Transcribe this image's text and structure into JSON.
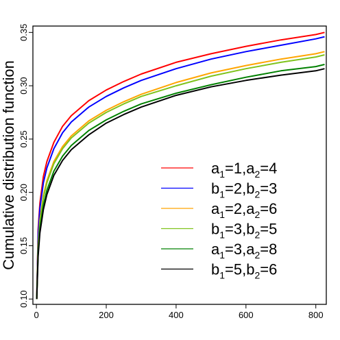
{
  "chart_data": {
    "type": "line",
    "title": "",
    "xlabel": "",
    "ylabel": "Cumulative distribution function",
    "xlim": [
      -10,
      830
    ],
    "ylim": [
      0.095,
      0.356
    ],
    "x_ticks": [
      0,
      200,
      400,
      600,
      800
    ],
    "y_ticks": [
      0.1,
      0.15,
      0.2,
      0.25,
      0.3,
      0.35
    ],
    "x_tick_labels": [
      "0",
      "200",
      "400",
      "600",
      "800"
    ],
    "y_tick_labels": [
      "0.10",
      "0.15",
      "0.20",
      "0.25",
      "0.30",
      "0.35"
    ],
    "grid": false,
    "legend_position": "right",
    "x": [
      1,
      5,
      10,
      20,
      30,
      50,
      75,
      100,
      150,
      200,
      250,
      300,
      400,
      500,
      600,
      700,
      800,
      825
    ],
    "series": [
      {
        "name": "a1=1,a2=4",
        "label_parts": [
          [
            "a",
            "1",
            "=1,"
          ],
          [
            "a",
            "2",
            "=4"
          ]
        ],
        "color": "#ff0000",
        "values": [
          0.1,
          0.165,
          0.19,
          0.215,
          0.229,
          0.247,
          0.262,
          0.272,
          0.286,
          0.296,
          0.304,
          0.311,
          0.322,
          0.33,
          0.337,
          0.343,
          0.348,
          0.35
        ]
      },
      {
        "name": "b1=2,b2=3",
        "label_parts": [
          [
            "b",
            "1",
            "=2,"
          ],
          [
            "b",
            "2",
            "=3"
          ]
        ],
        "color": "#0000ff",
        "values": [
          0.1,
          0.16,
          0.185,
          0.209,
          0.223,
          0.241,
          0.256,
          0.266,
          0.28,
          0.29,
          0.298,
          0.305,
          0.316,
          0.325,
          0.332,
          0.338,
          0.344,
          0.346
        ]
      },
      {
        "name": "a1=2,a2=6",
        "label_parts": [
          [
            "a",
            "1",
            "=2,"
          ],
          [
            "a",
            "2",
            "=6"
          ]
        ],
        "color": "#ffa500",
        "values": [
          0.1,
          0.15,
          0.174,
          0.197,
          0.211,
          0.229,
          0.243,
          0.253,
          0.267,
          0.277,
          0.285,
          0.292,
          0.303,
          0.312,
          0.319,
          0.325,
          0.33,
          0.332
        ]
      },
      {
        "name": "b1=3,b2=5",
        "label_parts": [
          [
            "b",
            "1",
            "=3,"
          ],
          [
            "b",
            "2",
            "=5"
          ]
        ],
        "color": "#7fc31c",
        "values": [
          0.1,
          0.148,
          0.172,
          0.195,
          0.209,
          0.227,
          0.241,
          0.251,
          0.265,
          0.275,
          0.283,
          0.29,
          0.3,
          0.309,
          0.316,
          0.322,
          0.327,
          0.329
        ]
      },
      {
        "name": "a1=3,a2=8",
        "label_parts": [
          [
            "a",
            "1",
            "=3,"
          ],
          [
            "a",
            "2",
            "=8"
          ]
        ],
        "color": "#008000",
        "values": [
          0.1,
          0.143,
          0.166,
          0.188,
          0.202,
          0.22,
          0.234,
          0.244,
          0.258,
          0.268,
          0.276,
          0.283,
          0.293,
          0.301,
          0.308,
          0.314,
          0.318,
          0.32
        ]
      },
      {
        "name": "b1=5,b2=6",
        "label_parts": [
          [
            "b",
            "1",
            "=5,"
          ],
          [
            "b",
            "2",
            "=6"
          ]
        ],
        "color": "#000000",
        "values": [
          0.1,
          0.14,
          0.162,
          0.184,
          0.198,
          0.216,
          0.23,
          0.24,
          0.254,
          0.265,
          0.273,
          0.28,
          0.291,
          0.299,
          0.305,
          0.31,
          0.314,
          0.316
        ]
      }
    ]
  }
}
